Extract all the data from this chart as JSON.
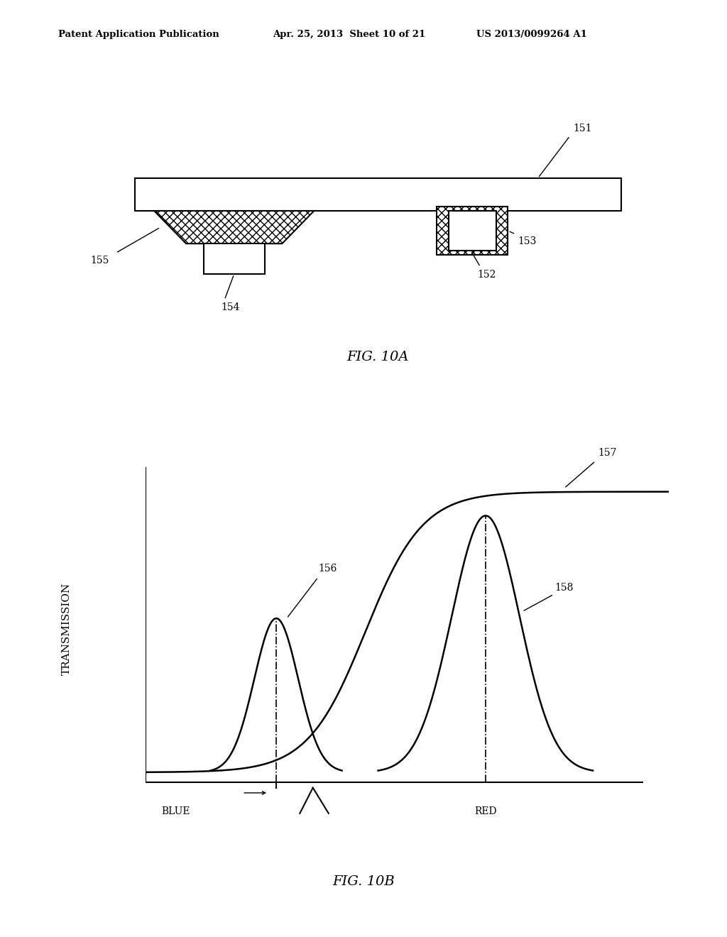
{
  "bg_color": "#ffffff",
  "fig10a_label": "FIG. 10A",
  "fig10b_label": "FIG. 10B",
  "label_151": "151",
  "label_152": "152",
  "label_153": "153",
  "label_154": "154",
  "label_155": "155",
  "label_156": "156",
  "label_157": "157",
  "label_158": "158",
  "ylabel": "TRANSMISSION",
  "xlabel_blue": "BLUE",
  "xlabel_red": "RED"
}
